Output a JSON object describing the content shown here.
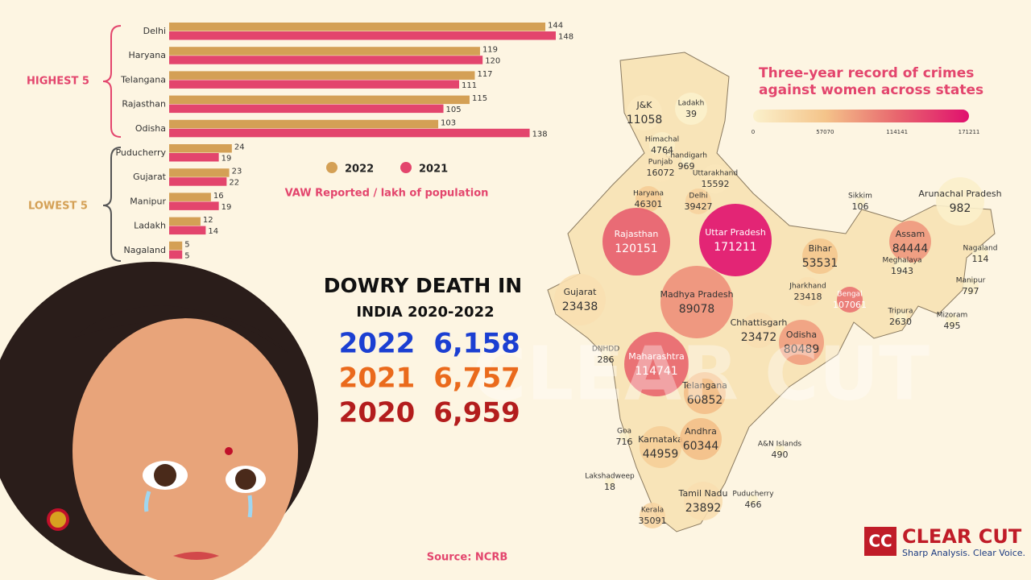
{
  "chart_data": {
    "type": "bar",
    "orientation": "horizontal",
    "categories": [
      "Delhi",
      "Haryana",
      "Telangana",
      "Rajasthan",
      "Odisha",
      "Puducherry",
      "Gujarat",
      "Manipur",
      "Ladakh",
      "Nagaland"
    ],
    "series": [
      {
        "name": "2022",
        "color": "#d4a055",
        "values": [
          144,
          119,
          117,
          115,
          103,
          24,
          23,
          16,
          12,
          5
        ]
      },
      {
        "name": "2021",
        "color": "#e3456d",
        "values": [
          148,
          120,
          111,
          105,
          138,
          19,
          22,
          19,
          14,
          5
        ]
      }
    ],
    "xlabel": "VAW Reported / lakh of population",
    "annotations": [
      "HIGHEST 5",
      "LOWEST 5"
    ]
  },
  "dowry": {
    "title": "DOWRY DEATH IN",
    "subtitle": "INDIA 2020-2022",
    "rows": [
      {
        "year": "2022",
        "value": "6,158",
        "color": "#1b3fd2"
      },
      {
        "year": "2021",
        "value": "6,757",
        "color": "#ea6a1c"
      },
      {
        "year": "2020",
        "value": "6,959",
        "color": "#b31d1d"
      }
    ]
  },
  "map": {
    "title": "Three-year record of crimes",
    "title_line2": "against women across states",
    "scale_ticks": [
      0,
      57070,
      114141,
      171211
    ],
    "scale_colors": [
      "#fbf1cc",
      "#f4c48a",
      "#e8666e",
      "#e0106e"
    ],
    "states": [
      {
        "name": "J&K",
        "value": 11058
      },
      {
        "name": "Ladakh",
        "value": 39
      },
      {
        "name": "Himachal",
        "value": 4764
      },
      {
        "name": "Chandigarh",
        "value": 969
      },
      {
        "name": "Punjab",
        "value": 16072
      },
      {
        "name": "Uttarakhand",
        "value": 15592
      },
      {
        "name": "Haryana",
        "value": 46301
      },
      {
        "name": "Delhi",
        "value": 39427
      },
      {
        "name": "Rajasthan",
        "value": 120151
      },
      {
        "name": "Uttar Pradesh",
        "value": 171211
      },
      {
        "name": "Bihar",
        "value": 53531
      },
      {
        "name": "Sikkim",
        "value": 106
      },
      {
        "name": "Arunachal Pradesh",
        "value": 982
      },
      {
        "name": "Assam",
        "value": 84444
      },
      {
        "name": "Nagaland",
        "value": 114
      },
      {
        "name": "Meghalaya",
        "value": 1943
      },
      {
        "name": "Manipur",
        "value": 797
      },
      {
        "name": "Tripura",
        "value": 2630
      },
      {
        "name": "Mizoram",
        "value": 495
      },
      {
        "name": "Jharkhand",
        "value": 23418
      },
      {
        "name": "Bengal",
        "value": 107061
      },
      {
        "name": "Gujarat",
        "value": 23438
      },
      {
        "name": "Madhya Pradesh",
        "value": 89078
      },
      {
        "name": "Chhattisgarh",
        "value": 23472
      },
      {
        "name": "Odisha",
        "value": 80489
      },
      {
        "name": "DNHDD",
        "value": 286
      },
      {
        "name": "Maharashtra",
        "value": 114741
      },
      {
        "name": "Telangana",
        "value": 60852
      },
      {
        "name": "Goa",
        "value": 716
      },
      {
        "name": "Karnataka",
        "value": 44959
      },
      {
        "name": "Andhra",
        "value": 60344
      },
      {
        "name": "A&N Islands",
        "value": 490
      },
      {
        "name": "Lakshadweep",
        "value": 18
      },
      {
        "name": "Tamil Nadu",
        "value": 23892
      },
      {
        "name": "Puducherry",
        "value": 466
      },
      {
        "name": "Kerala",
        "value": 35091
      }
    ]
  },
  "watermark": "CLEAR CUT",
  "source": "Source: NCRB",
  "brand": {
    "logo": "CC",
    "name": "CLEAR CUT",
    "tagline": "Sharp Analysis. Clear Voice."
  }
}
